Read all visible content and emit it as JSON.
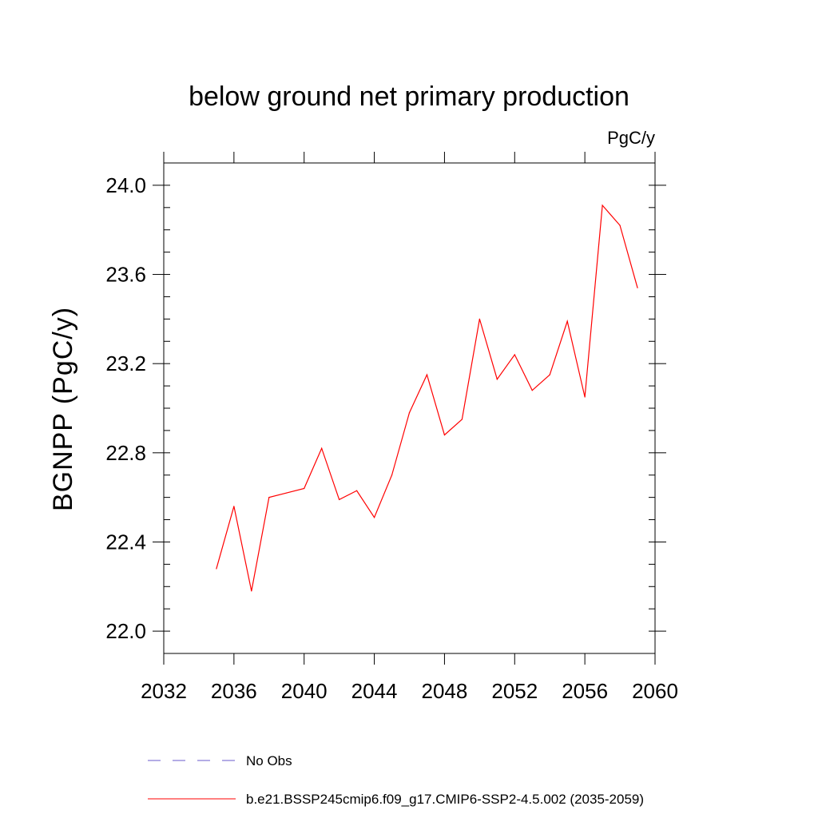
{
  "chart_data": {
    "type": "line",
    "title": "below ground net primary production",
    "units": "PgC/y",
    "ylabel": "BGNPP  (PgC/y)",
    "xlabel": "",
    "xlim": [
      2032,
      2060
    ],
    "ylim": [
      21.9,
      24.1
    ],
    "x_ticks": [
      2032,
      2036,
      2040,
      2044,
      2048,
      2052,
      2056,
      2060
    ],
    "x_tick_labels": [
      "2032",
      "2036",
      "2040",
      "2044",
      "2048",
      "2052",
      "2056",
      "2060"
    ],
    "y_ticks": [
      22.0,
      22.4,
      22.8,
      23.2,
      23.6,
      24.0
    ],
    "y_tick_labels": [
      "22.0",
      "22.4",
      "22.8",
      "23.2",
      "23.6",
      "24.0"
    ],
    "grid": false,
    "series": [
      {
        "name": "b.e21.BSSP245cmip6.f09_g17.CMIP6-SSP2-4.5.002 (2035-2059)",
        "color": "#ff0000",
        "style": "solid",
        "x": [
          2035,
          2036,
          2037,
          2038,
          2039,
          2040,
          2041,
          2042,
          2043,
          2044,
          2045,
          2046,
          2047,
          2048,
          2049,
          2050,
          2051,
          2052,
          2053,
          2054,
          2055,
          2056,
          2057,
          2058,
          2059
        ],
        "values": [
          22.28,
          22.56,
          22.18,
          22.6,
          22.62,
          22.64,
          22.82,
          22.59,
          22.63,
          22.51,
          22.7,
          22.98,
          23.15,
          22.88,
          22.95,
          23.4,
          23.13,
          23.24,
          23.08,
          23.15,
          23.39,
          23.05,
          23.91,
          23.82,
          23.54
        ]
      }
    ],
    "legend": [
      {
        "label": "No Obs",
        "color": "#6a5acd",
        "style": "dashed"
      },
      {
        "label": "b.e21.BSSP245cmip6.f09_g17.CMIP6-SSP2-4.5.002 (2035-2059)",
        "color": "#ff0000",
        "style": "solid"
      }
    ],
    "legend_position": "bottom"
  }
}
